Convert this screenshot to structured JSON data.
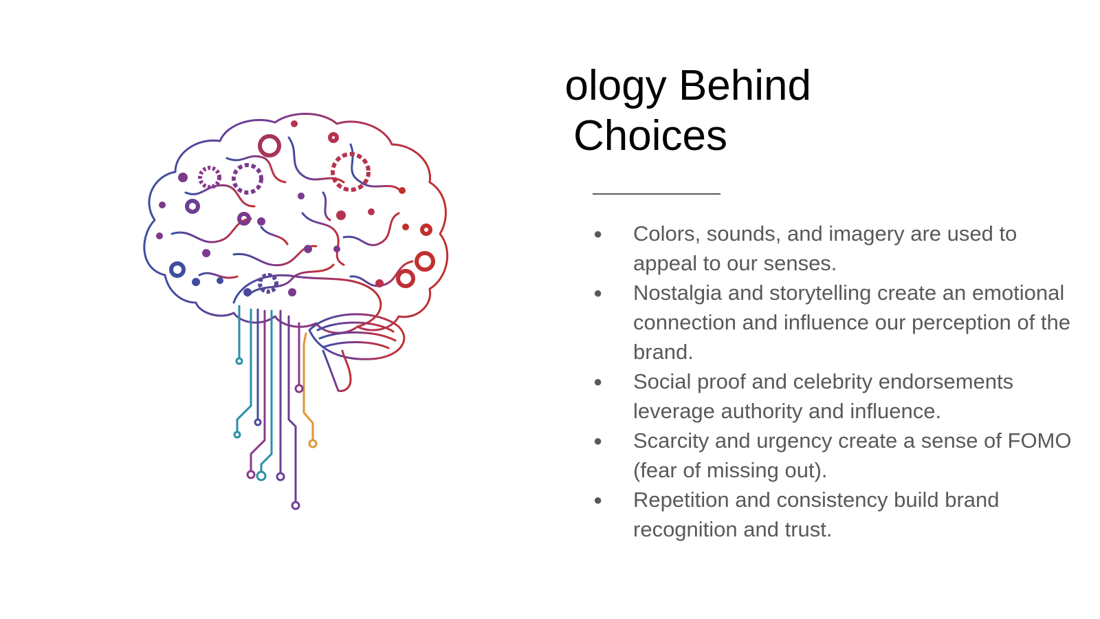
{
  "slide": {
    "title_line_1": "ology Behind",
    "title_line_2": "Choices",
    "bullet_char": "●",
    "bullets": [
      "Colors, sounds, and imagery are used to appeal to our senses.",
      "Nostalgia and storytelling create an emotional connection and influence our perception of the brand.",
      "Social proof and celebrity endorsements leverage authority and influence.",
      "Scarcity and urgency create a sense of FOMO (fear of missing out).",
      "Repetition and consistency build brand recognition and trust."
    ]
  },
  "image": {
    "icon": "brain-circuit-illustration",
    "gradient_colors": [
      "#3a4fa0",
      "#7a3a8e",
      "#b5334f",
      "#c0302e"
    ],
    "accent_colors": [
      "#2a8fa8",
      "#e0953a"
    ]
  },
  "colors": {
    "title": "#000000",
    "body_text": "#595959",
    "divider": "#595959",
    "background": "#ffffff"
  }
}
